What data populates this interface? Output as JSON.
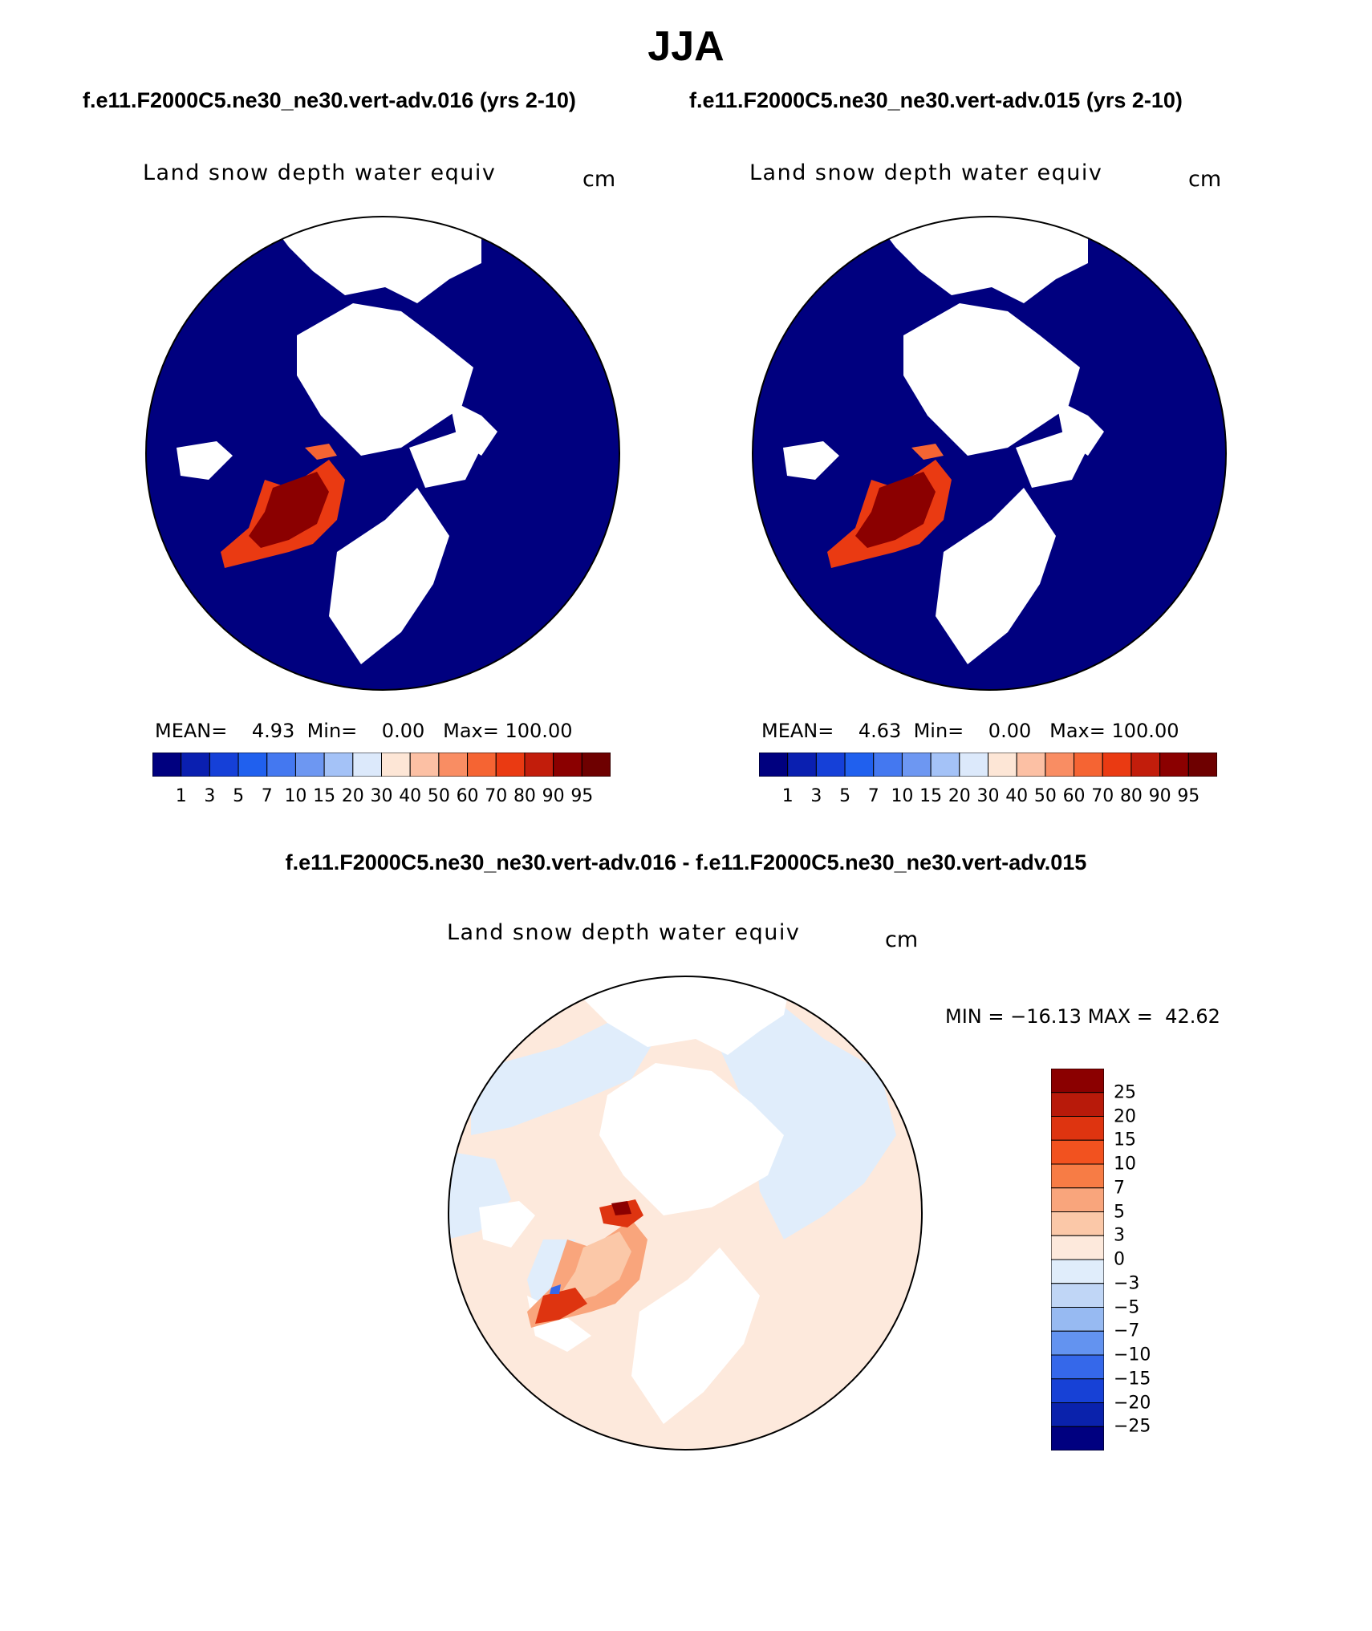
{
  "title": "JJA",
  "panels": [
    {
      "case_title": "f.e11.F2000C5.ne30_ne30.vert-adv.016 (yrs 2-10)",
      "variable": "Land snow depth water equiv",
      "units": "cm",
      "stats": {
        "mean_label": "MEAN=",
        "mean": "4.93",
        "min_label": "Min=",
        "min": "0.00",
        "max_label": "Max=",
        "max": "100.00"
      }
    },
    {
      "case_title": "f.e11.F2000C5.ne30_ne30.vert-adv.015 (yrs 2-10)",
      "variable": "Land snow depth water equiv",
      "units": "cm",
      "stats": {
        "mean_label": "MEAN=",
        "mean": "4.63",
        "min_label": "Min=",
        "min": "0.00",
        "max_label": "Max=",
        "max": "100.00"
      }
    }
  ],
  "colorbar_abs": {
    "levels": [
      "1",
      "3",
      "5",
      "7",
      "10",
      "15",
      "20",
      "30",
      "40",
      "50",
      "60",
      "70",
      "80",
      "90",
      "95"
    ],
    "colors": [
      "#00007f",
      "#0a1fb0",
      "#1540d8",
      "#2060ee",
      "#4478f0",
      "#6d97f2",
      "#a4c2f7",
      "#dce9fb",
      "#fde6d6",
      "#fcc0a4",
      "#f98d63",
      "#f56433",
      "#ea3a12",
      "#c21d0b",
      "#8b0000",
      "#6e0000"
    ]
  },
  "difference": {
    "title": "f.e11.F2000C5.ne30_ne30.vert-adv.016 - f.e11.F2000C5.ne30_ne30.vert-adv.015",
    "variable": "Land snow depth water equiv",
    "units": "cm",
    "stats": {
      "min_label": "MIN =",
      "min": "−16.13",
      "max_label": "MAX =",
      "max": "42.62"
    },
    "colorbar": {
      "levels": [
        "25",
        "20",
        "15",
        "10",
        "7",
        "5",
        "3",
        "0",
        "−3",
        "−5",
        "−7",
        "−10",
        "−15",
        "−20",
        "−25"
      ],
      "colors": [
        "#8b0000",
        "#b81a0a",
        "#de3410",
        "#f2521f",
        "#f77c45",
        "#f9a57c",
        "#fbc8a8",
        "#fde9dc",
        "#e0edfb",
        "#c0d6f6",
        "#97baf2",
        "#6393f0",
        "#3568ea",
        "#1741d6",
        "#0a22ac",
        "#000080"
      ]
    }
  }
}
